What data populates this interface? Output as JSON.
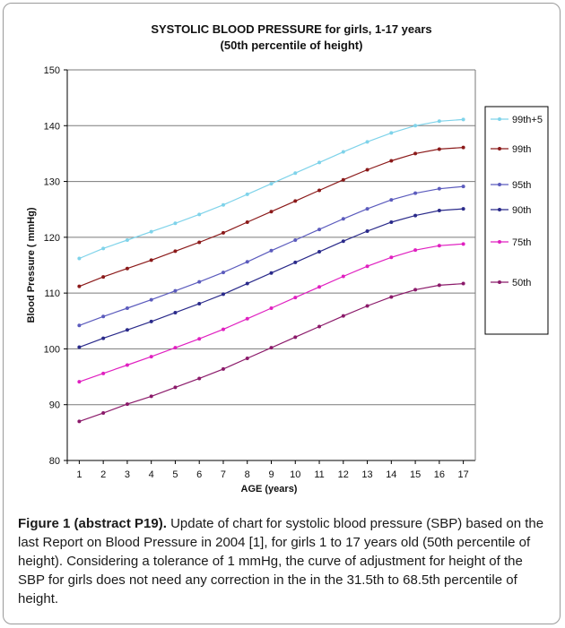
{
  "caption": {
    "label": "Figure 1 (abstract P19).",
    "text": "Update of chart for systolic blood pressure (SBP) based on the last Report on Blood Pressure in 2004 [1], for girls 1 to 17 years old (50th percentile of height). Considering a tolerance of 1 mmHg, the curve of adjustment for height of the SBP for girls does not need any correction in the in the 31.5th to 68.5th percentile of height."
  },
  "chart_data": {
    "type": "line",
    "title": "SYSTOLIC BLOOD PRESSURE for girls, 1-17 years",
    "subtitle": "(50th percentile of height)",
    "xlabel": "AGE (years)",
    "ylabel": "Blood Pressure   ( mmHg)",
    "x": [
      1,
      2,
      3,
      4,
      5,
      6,
      7,
      8,
      9,
      10,
      11,
      12,
      13,
      14,
      15,
      16,
      17
    ],
    "ylim": [
      80,
      150
    ],
    "yticks": [
      80,
      90,
      100,
      110,
      120,
      130,
      140,
      150
    ],
    "grid": true,
    "legend": "right",
    "series": [
      {
        "name": "99th+5",
        "color": "#7fd3ea",
        "values": [
          116.2,
          118.0,
          119.5,
          121.0,
          122.5,
          124.1,
          125.8,
          127.7,
          129.6,
          131.5,
          133.4,
          135.3,
          137.1,
          138.7,
          140.0,
          140.8,
          141.1
        ]
      },
      {
        "name": "99th",
        "color": "#8b1a1a",
        "values": [
          111.2,
          112.9,
          114.4,
          115.9,
          117.5,
          119.1,
          120.8,
          122.7,
          124.6,
          126.5,
          128.4,
          130.3,
          132.1,
          133.7,
          135.0,
          135.8,
          136.1
        ]
      },
      {
        "name": "95th",
        "color": "#5b5bbd",
        "values": [
          104.2,
          105.8,
          107.3,
          108.8,
          110.4,
          112.0,
          113.7,
          115.6,
          117.6,
          119.5,
          121.4,
          123.3,
          125.1,
          126.7,
          127.9,
          128.7,
          129.1
        ]
      },
      {
        "name": "90th",
        "color": "#2a2a8a",
        "values": [
          100.3,
          101.9,
          103.4,
          104.9,
          106.5,
          108.1,
          109.8,
          111.7,
          113.6,
          115.5,
          117.4,
          119.3,
          121.1,
          122.7,
          123.9,
          124.8,
          125.1
        ]
      },
      {
        "name": "75th",
        "color": "#e020c0",
        "values": [
          94.1,
          95.6,
          97.1,
          98.6,
          100.2,
          101.8,
          103.5,
          105.4,
          107.3,
          109.2,
          111.1,
          113.0,
          114.8,
          116.4,
          117.7,
          118.5,
          118.8
        ]
      },
      {
        "name": "50th",
        "color": "#8b1a6a",
        "values": [
          87.0,
          88.5,
          90.1,
          91.5,
          93.1,
          94.7,
          96.4,
          98.3,
          100.2,
          102.1,
          104.0,
          105.9,
          107.7,
          109.3,
          110.6,
          111.4,
          111.7
        ]
      }
    ]
  }
}
